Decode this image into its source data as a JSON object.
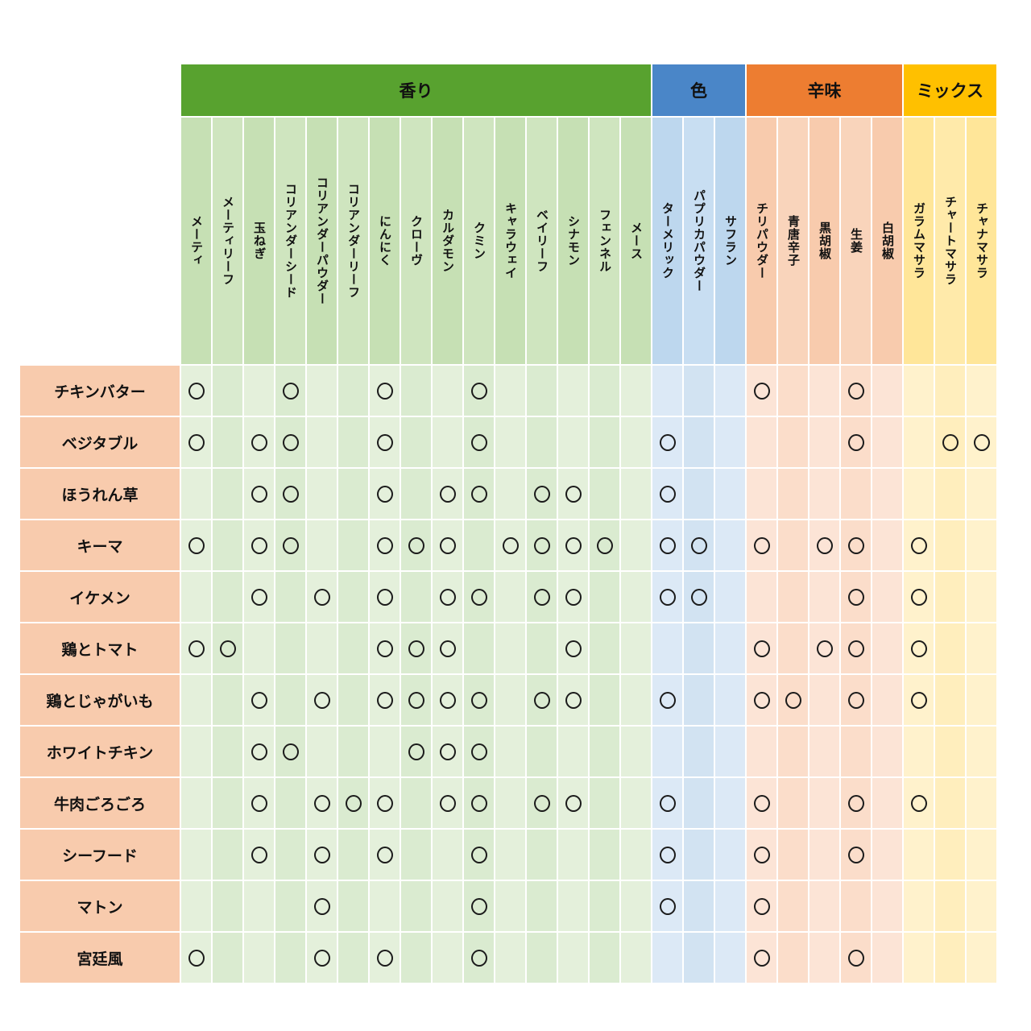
{
  "chart_data": {
    "type": "table",
    "mark_symbol": "○",
    "colors": {
      "header_text": "#111111",
      "row_label_bg": "#f8cbad",
      "grid_line": "#ffffff",
      "mark": "#1b1b1b",
      "background": "#ffffff"
    },
    "column_groups": [
      {
        "name": "香り",
        "header_bg": "#58a22f",
        "label_bg": "#c6e0b4",
        "label_bg_alt": "#cfe5bf",
        "data_bg": "#e4f0db",
        "data_bg_alt": "#daebd0",
        "columns": [
          "メーティ",
          "メーティリーフ",
          "玉ねぎ",
          "コリアンダーシード",
          "コリアンダーパウダー",
          "コリアンダーリーフ",
          "にんにく",
          "クローヴ",
          "カルダモン",
          "クミン",
          "キャラウェイ",
          "ベイリーフ",
          "シナモン",
          "フェンネル",
          "メース"
        ]
      },
      {
        "name": "色",
        "header_bg": "#4a86c8",
        "label_bg": "#bdd7ee",
        "label_bg_alt": "#c8def2",
        "data_bg": "#dce9f6",
        "data_bg_alt": "#d2e3f2",
        "columns": [
          "ターメリック",
          "パプリカパウダー",
          "サフラン"
        ]
      },
      {
        "name": "辛味",
        "header_bg": "#ed7d31",
        "label_bg": "#f8cbad",
        "label_bg_alt": "#f9d4bb",
        "data_bg": "#fce4d6",
        "data_bg_alt": "#fbddca",
        "columns": [
          "チリパウダー",
          "青唐辛子",
          "黒胡椒",
          "生姜",
          "白胡椒"
        ]
      },
      {
        "name": "ミックス",
        "header_bg": "#ffc000",
        "label_bg": "#ffe699",
        "label_bg_alt": "#ffeaaa",
        "data_bg": "#fff2cc",
        "data_bg_alt": "#ffeebd",
        "columns": [
          "ガラムマサラ",
          "チャートマサラ",
          "チャナマサラ"
        ]
      }
    ],
    "rows": [
      {
        "label": "チキンバター",
        "marks": [
          1,
          0,
          0,
          1,
          0,
          0,
          1,
          0,
          0,
          1,
          0,
          0,
          0,
          0,
          0,
          0,
          0,
          0,
          1,
          0,
          0,
          1,
          0,
          0,
          0,
          0
        ]
      },
      {
        "label": "ベジタブル",
        "marks": [
          1,
          0,
          1,
          1,
          0,
          0,
          1,
          0,
          0,
          1,
          0,
          0,
          0,
          0,
          0,
          1,
          0,
          0,
          0,
          0,
          0,
          1,
          0,
          0,
          1,
          1
        ]
      },
      {
        "label": "ほうれん草",
        "marks": [
          0,
          0,
          1,
          1,
          0,
          0,
          1,
          0,
          1,
          1,
          0,
          1,
          1,
          0,
          0,
          1,
          0,
          0,
          0,
          0,
          0,
          0,
          0,
          0,
          0,
          0
        ]
      },
      {
        "label": "キーマ",
        "marks": [
          1,
          0,
          1,
          1,
          0,
          0,
          1,
          1,
          1,
          0,
          1,
          1,
          1,
          1,
          0,
          1,
          1,
          0,
          1,
          0,
          1,
          1,
          0,
          1,
          0,
          0
        ]
      },
      {
        "label": "イケメン",
        "marks": [
          0,
          0,
          1,
          0,
          1,
          0,
          1,
          0,
          1,
          1,
          0,
          1,
          1,
          0,
          0,
          1,
          1,
          0,
          0,
          0,
          0,
          1,
          0,
          1,
          0,
          0
        ]
      },
      {
        "label": "鶏とトマト",
        "marks": [
          1,
          1,
          0,
          0,
          0,
          0,
          1,
          1,
          1,
          0,
          0,
          0,
          1,
          0,
          0,
          0,
          0,
          0,
          1,
          0,
          1,
          1,
          0,
          1,
          0,
          0
        ]
      },
      {
        "label": "鶏とじゃがいも",
        "marks": [
          0,
          0,
          1,
          0,
          1,
          0,
          1,
          1,
          1,
          1,
          0,
          1,
          1,
          0,
          0,
          1,
          0,
          0,
          1,
          1,
          0,
          1,
          0,
          1,
          0,
          0
        ]
      },
      {
        "label": "ホワイトチキン",
        "marks": [
          0,
          0,
          1,
          1,
          0,
          0,
          0,
          1,
          1,
          1,
          0,
          0,
          0,
          0,
          0,
          0,
          0,
          0,
          0,
          0,
          0,
          0,
          0,
          0,
          0,
          0
        ]
      },
      {
        "label": "牛肉ごろごろ",
        "marks": [
          0,
          0,
          1,
          0,
          1,
          1,
          1,
          0,
          1,
          1,
          0,
          1,
          1,
          0,
          0,
          1,
          0,
          0,
          1,
          0,
          0,
          1,
          0,
          1,
          0,
          0
        ]
      },
      {
        "label": "シーフード",
        "marks": [
          0,
          0,
          1,
          0,
          1,
          0,
          1,
          0,
          0,
          1,
          0,
          0,
          0,
          0,
          0,
          1,
          0,
          0,
          1,
          0,
          0,
          1,
          0,
          0,
          0,
          0
        ]
      },
      {
        "label": "マトン",
        "marks": [
          0,
          0,
          0,
          0,
          1,
          0,
          0,
          0,
          0,
          1,
          0,
          0,
          0,
          0,
          0,
          1,
          0,
          0,
          1,
          0,
          0,
          0,
          0,
          0,
          0,
          0
        ]
      },
      {
        "label": "宮廷風",
        "marks": [
          1,
          0,
          0,
          0,
          1,
          0,
          1,
          0,
          0,
          1,
          0,
          0,
          0,
          0,
          0,
          0,
          0,
          0,
          1,
          0,
          0,
          1,
          0,
          0,
          0,
          0
        ]
      }
    ]
  }
}
